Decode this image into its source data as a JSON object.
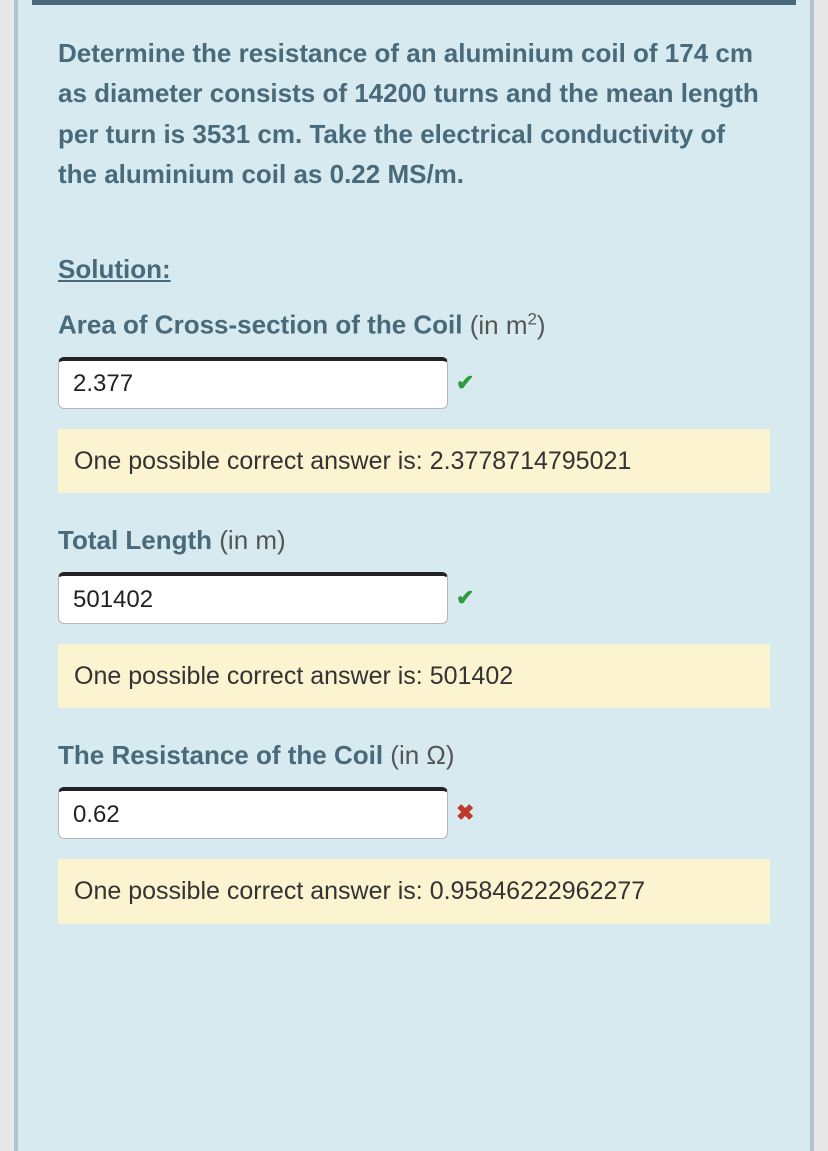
{
  "question": "Determine the resistance of an aluminium coil of 174 cm as diameter consists of 14200 turns and the mean length per turn is 3531 cm. Take the electrical conductivity of the aluminium coil as 0.22 MS/m.",
  "solution_heading": "Solution:",
  "fields": {
    "area": {
      "label_strong": "Area of Cross-section of the Coil",
      "label_unit_prefix": " (in m",
      "label_unit_sup": "2",
      "label_unit_suffix": ")",
      "value": "2.377",
      "status": "correct",
      "feedback": "One possible correct answer is: 2.3778714795021"
    },
    "length": {
      "label_strong": "Total Length",
      "label_unit": " (in m)",
      "value": "501402",
      "status": "correct",
      "feedback": "One possible correct answer is: 501402"
    },
    "resistance": {
      "label_strong": "The Resistance of the Coil",
      "label_unit": " (in Ω)",
      "value": "0.62",
      "status": "wrong",
      "feedback": "One possible correct answer is: 0.95846222962277"
    }
  },
  "colors": {
    "panel_bg": "#d6eaf0",
    "heading": "#486a7a",
    "feedback_bg": "#fcf3d0",
    "correct": "#2e9b3d",
    "wrong": "#c0392b"
  }
}
